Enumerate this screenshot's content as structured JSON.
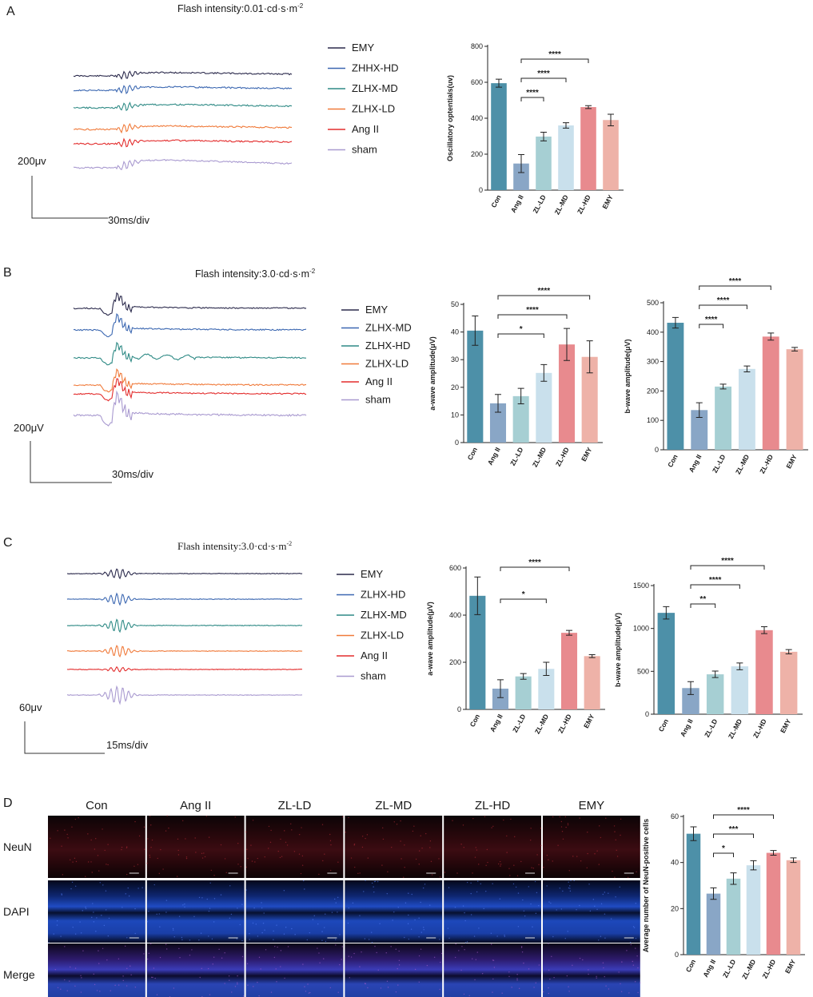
{
  "figure": {
    "panels": [
      {
        "letter": "A",
        "flash": "Flash intensity:0.01·cd·s·m",
        "flash_exp": "-2",
        "legend": [
          "EMY",
          "ZHHX-HD",
          "ZLHX-MD",
          "ZLHX-LD",
          "Ang II",
          "sham"
        ],
        "scale_v": "200μv",
        "scale_t": "30ms/div"
      },
      {
        "letter": "B",
        "flash": "Flash intensity:3.0·cd·s·m",
        "flash_exp": "-2",
        "legend": [
          "EMY",
          "ZLHX-MD",
          "ZLHX-HD",
          "ZLHX-LD",
          "Ang II",
          "sham"
        ],
        "scale_v": "200μV",
        "scale_t": "30ms/div"
      },
      {
        "letter": "C",
        "flash": "Flash intensity:3.0·cd·s·m",
        "flash_exp": "-2",
        "legend": [
          "EMY",
          "ZLHX-HD",
          "ZLHX-MD",
          "ZLHX-LD",
          "Ang II",
          "sham"
        ],
        "scale_v": "60μv",
        "scale_t": "15ms/div"
      },
      {
        "letter": "D",
        "columns": [
          "Con",
          "Ang II",
          "ZL-LD",
          "ZL-MD",
          "ZL-HD",
          "EMY"
        ],
        "rows": [
          "NeuN",
          "DAPI",
          "Merge"
        ]
      }
    ],
    "trace_colors": [
      "#2b2a4c",
      "#3b67b1",
      "#2e8a85",
      "#f07a3a",
      "#e32d2d",
      "#a99ad0"
    ]
  },
  "chart_data": [
    {
      "type": "bar",
      "panel": "A",
      "categories": [
        "Con",
        "Ang II",
        "ZL-LD",
        "ZL-MD",
        "ZL-HD",
        "EMY"
      ],
      "values": [
        595,
        148,
        298,
        360,
        462,
        390
      ],
      "errors": [
        22,
        50,
        24,
        15,
        8,
        32
      ],
      "ylabel": "Oscillatory optentials(uv)",
      "ylim": [
        0,
        800
      ],
      "yticks": [
        0,
        200,
        400,
        600,
        800
      ],
      "colors": [
        "#4d90a8",
        "#89a6c6",
        "#a6cfd3",
        "#c9e0ec",
        "#e88a8e",
        "#eeb2a8"
      ],
      "significance": [
        {
          "from": 1,
          "to": 2,
          "label": "****"
        },
        {
          "from": 1,
          "to": 3,
          "label": "****"
        },
        {
          "from": 1,
          "to": 4,
          "label": "****"
        }
      ]
    },
    {
      "type": "bar",
      "panel": "B",
      "categories": [
        "Con",
        "Ang II",
        "ZL-LD",
        "ZL-MD",
        "ZL-HD",
        "EMY"
      ],
      "values": [
        40.5,
        14.2,
        16.8,
        25.2,
        35.5,
        31.0
      ],
      "errors": [
        5.3,
        3.2,
        2.8,
        3.0,
        5.8,
        5.8
      ],
      "ylabel": "a-wave amplitude(μV)",
      "ylim": [
        0,
        50
      ],
      "yticks": [
        0,
        10,
        20,
        30,
        40,
        50
      ],
      "colors": [
        "#4d90a8",
        "#89a6c6",
        "#a6cfd3",
        "#c9e0ec",
        "#e88a8e",
        "#eeb2a8"
      ],
      "significance": [
        {
          "from": 1,
          "to": 3,
          "label": "*"
        },
        {
          "from": 1,
          "to": 4,
          "label": "****"
        },
        {
          "from": 1,
          "to": 5,
          "label": "****"
        }
      ]
    },
    {
      "type": "bar",
      "panel": "B",
      "categories": [
        "Con",
        "Ang II",
        "ZL-LD",
        "ZL-MD",
        "ZL-HD",
        "EMY"
      ],
      "values": [
        432,
        135,
        215,
        275,
        385,
        342
      ],
      "errors": [
        18,
        25,
        8,
        10,
        12,
        6
      ],
      "ylabel": "b-wave amplitude(μV)",
      "ylim": [
        0,
        500
      ],
      "yticks": [
        0,
        100,
        200,
        300,
        400,
        500
      ],
      "colors": [
        "#4d90a8",
        "#89a6c6",
        "#a6cfd3",
        "#c9e0ec",
        "#e88a8e",
        "#eeb2a8"
      ],
      "significance": [
        {
          "from": 1,
          "to": 2,
          "label": "****"
        },
        {
          "from": 1,
          "to": 3,
          "label": "****"
        },
        {
          "from": 1,
          "to": 4,
          "label": "****"
        }
      ]
    },
    {
      "type": "bar",
      "panel": "C",
      "categories": [
        "Con",
        "Ang II",
        "ZL-LD",
        "ZL-MD",
        "ZL-HD",
        "EMY"
      ],
      "values": [
        482,
        88,
        140,
        172,
        325,
        226
      ],
      "errors": [
        80,
        38,
        12,
        28,
        10,
        6
      ],
      "ylabel": "a-wave amplitude(μV)",
      "ylim": [
        0,
        600
      ],
      "yticks": [
        0,
        200,
        400,
        600
      ],
      "colors": [
        "#4d90a8",
        "#89a6c6",
        "#a6cfd3",
        "#c9e0ec",
        "#e88a8e",
        "#eeb2a8"
      ],
      "significance": [
        {
          "from": 1,
          "to": 3,
          "label": "*"
        },
        {
          "from": 1,
          "to": 4,
          "label": "****"
        }
      ]
    },
    {
      "type": "bar",
      "panel": "C",
      "categories": [
        "Con",
        "Ang II",
        "ZL-LD",
        "ZL-MD",
        "ZL-HD",
        "EMY"
      ],
      "values": [
        1182,
        305,
        465,
        558,
        980,
        728
      ],
      "errors": [
        72,
        75,
        38,
        40,
        40,
        25
      ],
      "ylabel": "b-wave amplitude(μV)",
      "ylim": [
        0,
        1500
      ],
      "yticks": [
        0,
        500,
        1000,
        1500
      ],
      "colors": [
        "#4d90a8",
        "#89a6c6",
        "#a6cfd3",
        "#c9e0ec",
        "#e88a8e",
        "#eeb2a8"
      ],
      "significance": [
        {
          "from": 1,
          "to": 2,
          "label": "**"
        },
        {
          "from": 1,
          "to": 3,
          "label": "****"
        },
        {
          "from": 1,
          "to": 4,
          "label": "****"
        }
      ]
    },
    {
      "type": "bar",
      "panel": "D",
      "categories": [
        "Con",
        "Ang II",
        "ZL-LD",
        "ZL-MD",
        "ZL-HD",
        "EMY"
      ],
      "values": [
        52.5,
        26.5,
        33.0,
        38.8,
        44.2,
        41.0
      ],
      "errors": [
        3.0,
        2.5,
        2.5,
        2.0,
        1.0,
        1.0
      ],
      "ylabel": "Average number of NeuN-positive cells",
      "ylim": [
        0,
        60
      ],
      "yticks": [
        0,
        20,
        40,
        60
      ],
      "colors": [
        "#4d90a8",
        "#89a6c6",
        "#a6cfd3",
        "#c9e0ec",
        "#e88a8e",
        "#eeb2a8"
      ],
      "significance": [
        {
          "from": 1,
          "to": 2,
          "label": "*"
        },
        {
          "from": 1,
          "to": 3,
          "label": "***"
        },
        {
          "from": 1,
          "to": 4,
          "label": "****"
        }
      ]
    }
  ]
}
